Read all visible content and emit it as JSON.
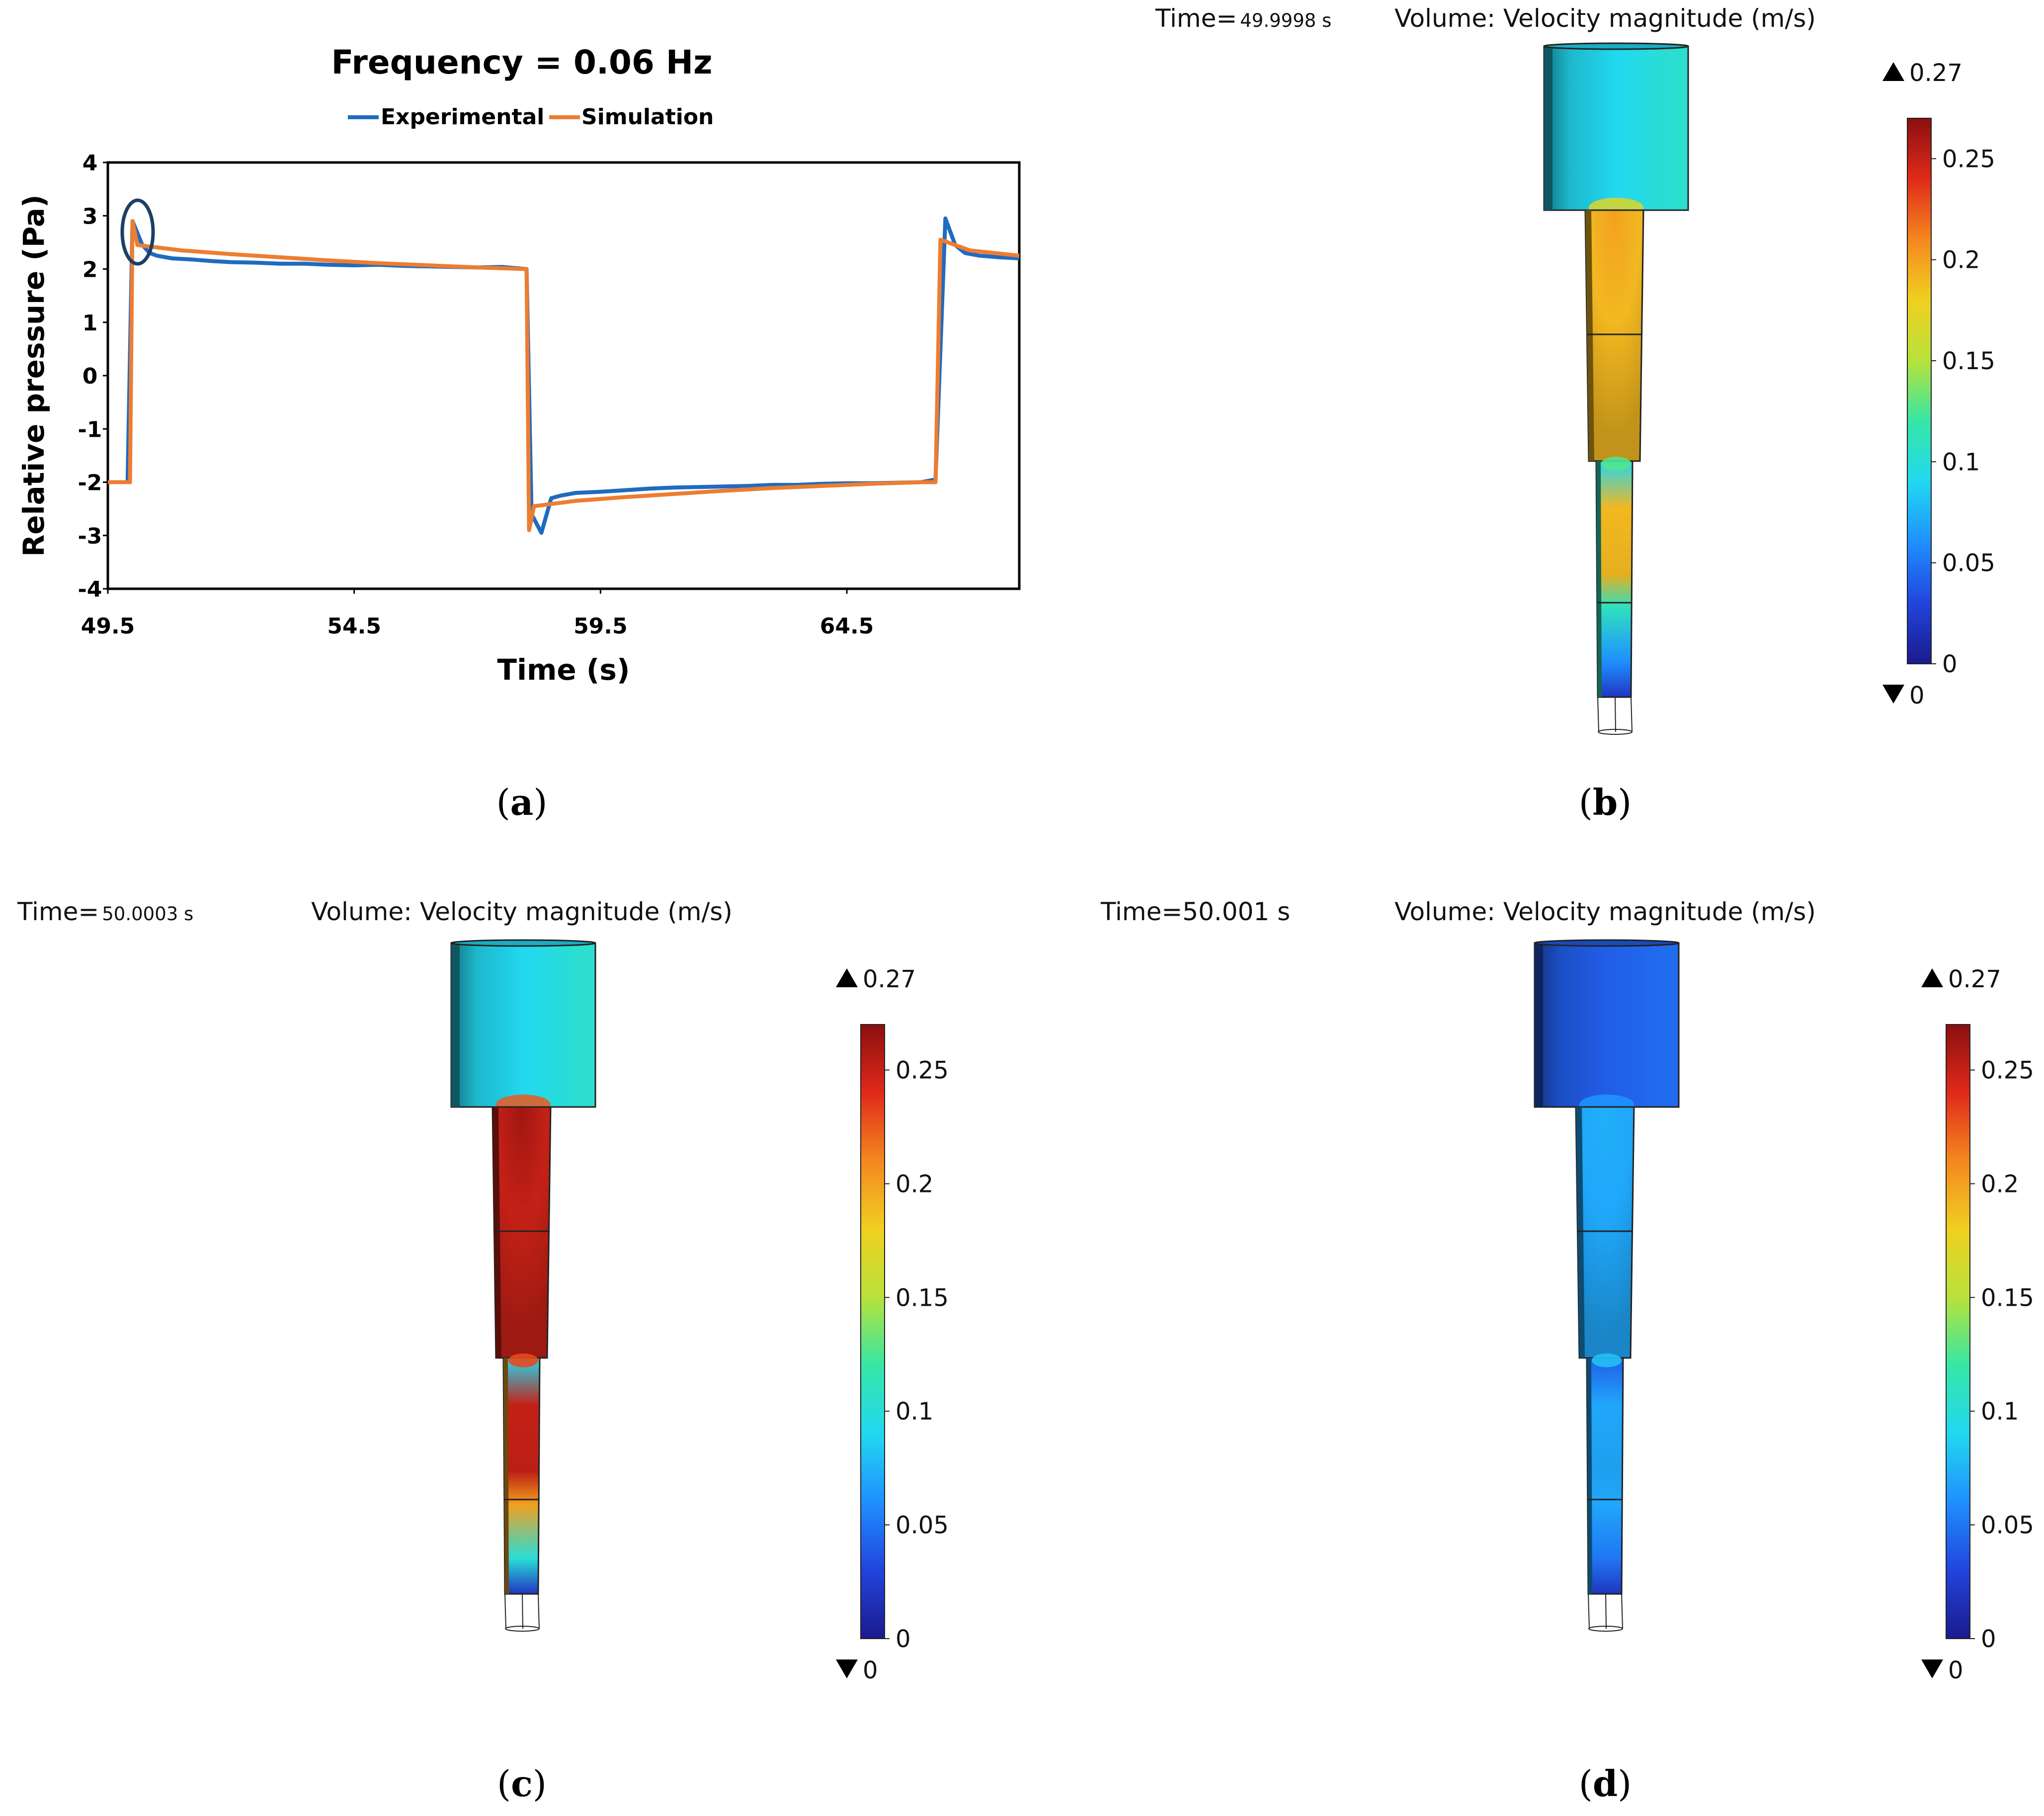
{
  "colors": {
    "experimental": "#1f6bbf",
    "simulation": "#ed7d31",
    "annotation_circle": "#1c3f66",
    "colormap": [
      "#1a1a8c",
      "#2244dd",
      "#1f8fff",
      "#22d8f0",
      "#36e6a6",
      "#b8e23a",
      "#f0d020",
      "#f5871f",
      "#e02a1a",
      "#8b0f0f"
    ]
  },
  "chart_data": {
    "type": "line",
    "title": "Frequency = 0.06 Hz",
    "xlabel": "Time (s)",
    "ylabel": "Relative pressure (Pa)",
    "xlim": [
      49.5,
      68.0
    ],
    "ylim": [
      -4,
      4
    ],
    "xticks": [
      "49.5",
      "54.5",
      "59.5",
      "64.5"
    ],
    "xtick_values": [
      49.5,
      54.5,
      59.5,
      64.5
    ],
    "yticks": [
      "4",
      "3",
      "2",
      "1",
      "0",
      "-1",
      "-2",
      "-3",
      "-4"
    ],
    "ytick_values": [
      4,
      3,
      2,
      1,
      0,
      -1,
      -2,
      -3,
      -4
    ],
    "legend": "top-center",
    "annotation": "circle around the pressure overshoot at t ≈ 50",
    "series": [
      {
        "name": "Experimental",
        "x": [
          49.5,
          49.9,
          50.0,
          50.2,
          50.35,
          50.5,
          50.8,
          51.2,
          51.6,
          52.0,
          52.5,
          53.0,
          53.5,
          54.0,
          54.5,
          55.0,
          55.5,
          56.0,
          56.5,
          57.0,
          57.5,
          58.0,
          58.1,
          58.3,
          58.5,
          58.7,
          59.0,
          59.5,
          60.0,
          60.5,
          61.0,
          61.5,
          62.0,
          62.5,
          63.0,
          63.5,
          64.0,
          64.5,
          65.0,
          65.5,
          66.0,
          66.3,
          66.5,
          66.7,
          66.9,
          67.2,
          67.6,
          68.0
        ],
        "y": [
          -2.0,
          -2.0,
          2.9,
          2.45,
          2.3,
          2.25,
          2.2,
          2.18,
          2.15,
          2.13,
          2.12,
          2.1,
          2.1,
          2.08,
          2.07,
          2.08,
          2.06,
          2.05,
          2.04,
          2.03,
          2.04,
          2.0,
          -2.6,
          -2.95,
          -2.3,
          -2.25,
          -2.2,
          -2.18,
          -2.15,
          -2.12,
          -2.1,
          -2.09,
          -2.08,
          -2.07,
          -2.05,
          -2.05,
          -2.03,
          -2.02,
          -2.02,
          -2.01,
          -2.0,
          -1.95,
          2.95,
          2.45,
          2.3,
          2.25,
          2.22,
          2.2
        ]
      },
      {
        "name": "Simulation",
        "x": [
          49.5,
          49.95,
          50.0,
          50.1,
          51.0,
          52.0,
          53.0,
          54.0,
          55.0,
          56.0,
          57.0,
          58.0,
          58.05,
          58.15,
          59.0,
          60.0,
          61.0,
          62.0,
          63.0,
          64.0,
          65.0,
          66.0,
          66.3,
          66.4,
          67.0,
          68.0
        ],
        "y": [
          -2.0,
          -2.0,
          2.9,
          2.45,
          2.35,
          2.28,
          2.22,
          2.16,
          2.11,
          2.07,
          2.03,
          2.0,
          -2.9,
          -2.45,
          -2.35,
          -2.28,
          -2.22,
          -2.16,
          -2.11,
          -2.07,
          -2.03,
          -2.0,
          -2.0,
          2.55,
          2.35,
          2.25
        ]
      }
    ]
  },
  "panels": {
    "a": {
      "caption": "a"
    },
    "b": {
      "caption": "b",
      "time_label": "Time=",
      "time_value": "49.9998 s",
      "volume_title": "Volume: Velocity magnitude (m/s)",
      "max_label": "0.27",
      "min_label": "0",
      "colorbar_ticks": [
        "0.25",
        "0.2",
        "0.15",
        "0.1",
        "0.05",
        "0"
      ],
      "colorbar_tick_values": [
        0.25,
        0.2,
        0.15,
        0.1,
        0.05,
        0
      ],
      "colorbar_range": [
        0,
        0.27
      ],
      "field": {
        "top": 0.09,
        "jet": 0.19,
        "lower": 0.11,
        "tip": 0.06
      }
    },
    "c": {
      "caption": "c",
      "time_label": "Time=",
      "time_value": "50.0003 s",
      "volume_title": "Volume: Velocity magnitude (m/s)",
      "max_label": "0.27",
      "min_label": "0",
      "colorbar_ticks": [
        "0.25",
        "0.2",
        "0.15",
        "0.1",
        "0.05",
        "0"
      ],
      "colorbar_tick_values": [
        0.25,
        0.2,
        0.15,
        0.1,
        0.05,
        0
      ],
      "colorbar_range": [
        0,
        0.27
      ],
      "field": {
        "top": 0.09,
        "jet": 0.25,
        "lower": 0.2,
        "tip": 0.1
      }
    },
    "d": {
      "caption": "d",
      "time_label": "Time=50.001 s",
      "volume_title": "Volume: Velocity magnitude (m/s)",
      "max_label": "0.27",
      "min_label": "0",
      "colorbar_ticks": [
        "0.25",
        "0.2",
        "0.15",
        "0.1",
        "0.05",
        "0"
      ],
      "colorbar_tick_values": [
        0.25,
        0.2,
        0.15,
        0.1,
        0.05,
        0
      ],
      "colorbar_range": [
        0,
        0.27
      ],
      "field": {
        "top": 0.04,
        "jet": 0.07,
        "lower": 0.07,
        "tip": 0.05
      }
    }
  }
}
